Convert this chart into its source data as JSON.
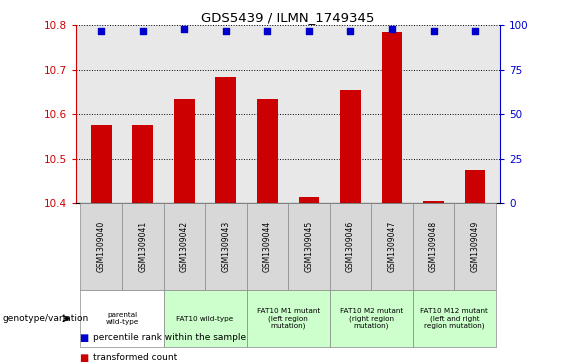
{
  "title": "GDS5439 / ILMN_1749345",
  "samples": [
    "GSM1309040",
    "GSM1309041",
    "GSM1309042",
    "GSM1309043",
    "GSM1309044",
    "GSM1309045",
    "GSM1309046",
    "GSM1309047",
    "GSM1309048",
    "GSM1309049"
  ],
  "bar_values": [
    10.575,
    10.575,
    10.635,
    10.685,
    10.635,
    10.415,
    10.655,
    10.785,
    10.405,
    10.475
  ],
  "percentile_values": [
    97,
    97,
    98,
    97,
    97,
    97,
    97,
    98,
    97,
    97
  ],
  "ylim_left": [
    10.4,
    10.8
  ],
  "ylim_right": [
    0,
    100
  ],
  "yticks_left": [
    10.4,
    10.5,
    10.6,
    10.7,
    10.8
  ],
  "yticks_right": [
    0,
    25,
    50,
    75,
    100
  ],
  "bar_color": "#cc0000",
  "dot_color": "#0000cc",
  "grid_color": "#000000",
  "bg_color": "#ffffff",
  "plot_bg": "#e8e8e8",
  "genotype_groups": [
    {
      "label": "parental\nwild-type",
      "start": 0,
      "end": 2,
      "color": "#ffffff"
    },
    {
      "label": "FAT10 wild-type",
      "start": 2,
      "end": 4,
      "color": "#ccffcc"
    },
    {
      "label": "FAT10 M1 mutant\n(left region\nmutation)",
      "start": 4,
      "end": 6,
      "color": "#ccffcc"
    },
    {
      "label": "FAT10 M2 mutant\n(right region\nmutation)",
      "start": 6,
      "end": 8,
      "color": "#ccffcc"
    },
    {
      "label": "FAT10 M12 mutant\n(left and right\nregion mutation)",
      "start": 8,
      "end": 10,
      "color": "#ccffcc"
    }
  ],
  "legend_items": [
    {
      "label": "transformed count",
      "color": "#cc0000"
    },
    {
      "label": "percentile rank within the sample",
      "color": "#0000cc"
    }
  ],
  "genotype_label": "genotype/variation"
}
